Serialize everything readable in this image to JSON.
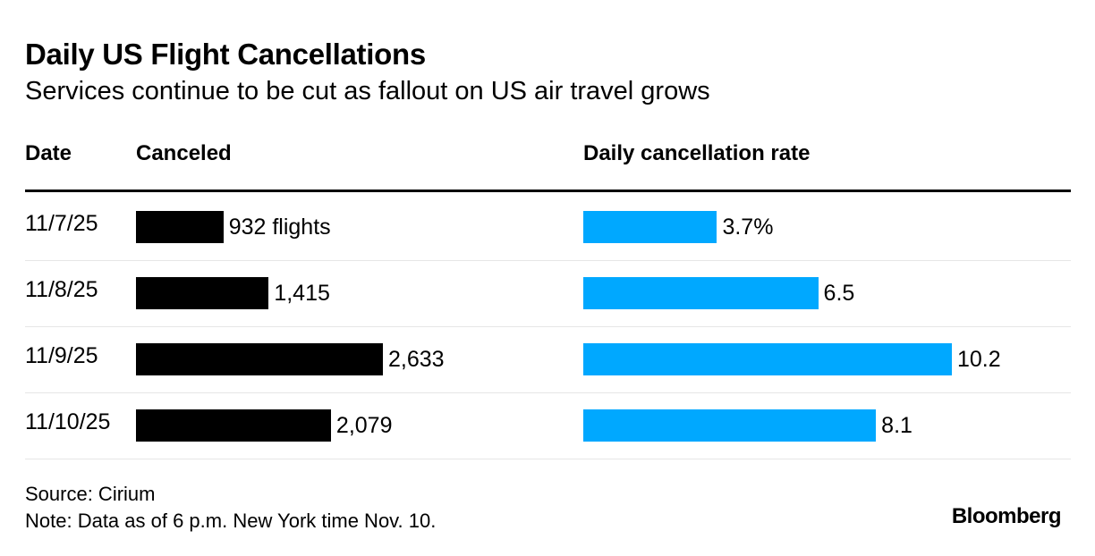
{
  "header": {
    "title": "Daily US Flight Cancellations",
    "subtitle": "Services continue to be cut as fallout on US air travel grows"
  },
  "columns": {
    "date": "Date",
    "canceled": "Canceled",
    "rate": "Daily cancellation rate"
  },
  "footer": {
    "source": "Source: Cirium",
    "note": "Note: Data as of 6 p.m. New York time Nov. 10.",
    "logo": "Bloomberg"
  },
  "colors": {
    "canceled_bar": "#000000",
    "rate_bar": "#00a8ff"
  },
  "chart_data": {
    "type": "bar",
    "orientation": "horizontal",
    "title": "Daily US Flight Cancellations",
    "subtitle": "Services continue to be cut as fallout on US air travel grows",
    "categories": [
      "11/7/25",
      "11/8/25",
      "11/9/25",
      "11/10/25"
    ],
    "series": [
      {
        "name": "Canceled",
        "values": [
          932,
          1415,
          2633,
          2079
        ],
        "labels": [
          "932 flights",
          "1,415",
          "2,633",
          "2,079"
        ],
        "color": "#000000",
        "max": 2633
      },
      {
        "name": "Daily cancellation rate",
        "values": [
          3.7,
          6.5,
          10.2,
          8.1
        ],
        "labels": [
          "3.7%",
          "6.5",
          "10.2",
          "8.1"
        ],
        "color": "#00a8ff",
        "max": 10.2
      }
    ]
  }
}
